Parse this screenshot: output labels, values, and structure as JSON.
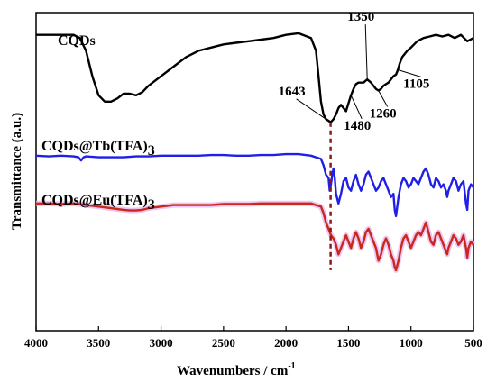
{
  "chart_data": {
    "type": "line",
    "xlabel_main": "Wavenumbers / cm",
    "xlabel_sup": "-1",
    "ylabel": "Transmittance (a.u.)",
    "xlim": [
      4000,
      500
    ],
    "x_ticks": [
      "4000",
      "3500",
      "3000",
      "2500",
      "2000",
      "1500",
      "1000",
      "500"
    ],
    "series": [
      {
        "name": "CQDs",
        "label_main": "CQDs",
        "label_sub": "",
        "color": "#000000",
        "x": [
          4000,
          3800,
          3700,
          3650,
          3600,
          3550,
          3500,
          3450,
          3400,
          3350,
          3300,
          3250,
          3200,
          3150,
          3100,
          3000,
          2900,
          2800,
          2700,
          2600,
          2500,
          2400,
          2300,
          2200,
          2100,
          2000,
          1900,
          1800,
          1760,
          1740,
          1720,
          1700,
          1680,
          1660,
          1643,
          1620,
          1600,
          1580,
          1560,
          1540,
          1520,
          1500,
          1480,
          1460,
          1440,
          1420,
          1400,
          1380,
          1350,
          1320,
          1300,
          1280,
          1260,
          1240,
          1220,
          1200,
          1180,
          1160,
          1140,
          1120,
          1105,
          1090,
          1070,
          1050,
          1030,
          1000,
          950,
          900,
          850,
          800,
          750,
          700,
          650,
          600,
          550,
          500
        ],
        "y": [
          0.93,
          0.93,
          0.93,
          0.92,
          0.88,
          0.8,
          0.74,
          0.72,
          0.72,
          0.73,
          0.745,
          0.745,
          0.74,
          0.75,
          0.77,
          0.8,
          0.83,
          0.86,
          0.88,
          0.89,
          0.9,
          0.905,
          0.91,
          0.915,
          0.92,
          0.93,
          0.935,
          0.92,
          0.88,
          0.8,
          0.72,
          0.68,
          0.665,
          0.66,
          0.655,
          0.665,
          0.68,
          0.7,
          0.71,
          0.7,
          0.69,
          0.715,
          0.74,
          0.76,
          0.775,
          0.78,
          0.78,
          0.78,
          0.79,
          0.78,
          0.77,
          0.76,
          0.755,
          0.76,
          0.77,
          0.775,
          0.78,
          0.79,
          0.8,
          0.805,
          0.82,
          0.84,
          0.86,
          0.87,
          0.88,
          0.89,
          0.91,
          0.92,
          0.925,
          0.93,
          0.925,
          0.93,
          0.92,
          0.93,
          0.91,
          0.92
        ]
      },
      {
        "name": "CQDs@Tb(TFA)3",
        "label_main": "CQDs@Tb(TFA)",
        "label_sub": "3",
        "color": "#1f1fe6",
        "x": [
          4000,
          3900,
          3800,
          3700,
          3660,
          3640,
          3620,
          3600,
          3500,
          3400,
          3300,
          3200,
          3100,
          3000,
          2900,
          2800,
          2700,
          2600,
          2500,
          2400,
          2300,
          2200,
          2100,
          2000,
          1900,
          1800,
          1760,
          1720,
          1700,
          1680,
          1660,
          1650,
          1640,
          1630,
          1620,
          1610,
          1600,
          1580,
          1560,
          1540,
          1520,
          1500,
          1480,
          1460,
          1440,
          1420,
          1400,
          1380,
          1360,
          1340,
          1320,
          1300,
          1280,
          1260,
          1240,
          1220,
          1200,
          1180,
          1160,
          1140,
          1130,
          1120,
          1100,
          1080,
          1060,
          1040,
          1020,
          1000,
          980,
          960,
          940,
          920,
          900,
          880,
          860,
          840,
          820,
          800,
          780,
          760,
          740,
          720,
          710,
          700,
          680,
          660,
          640,
          620,
          600,
          580,
          560,
          550,
          540,
          520,
          500
        ],
        "y": [
          0.55,
          0.548,
          0.55,
          0.548,
          0.545,
          0.535,
          0.545,
          0.548,
          0.545,
          0.545,
          0.545,
          0.548,
          0.548,
          0.55,
          0.55,
          0.55,
          0.55,
          0.552,
          0.552,
          0.55,
          0.55,
          0.552,
          0.552,
          0.555,
          0.555,
          0.55,
          0.545,
          0.54,
          0.52,
          0.49,
          0.48,
          0.44,
          0.46,
          0.49,
          0.51,
          0.48,
          0.43,
          0.4,
          0.43,
          0.47,
          0.48,
          0.45,
          0.44,
          0.47,
          0.49,
          0.46,
          0.44,
          0.46,
          0.49,
          0.5,
          0.48,
          0.46,
          0.44,
          0.45,
          0.47,
          0.48,
          0.46,
          0.44,
          0.42,
          0.43,
          0.38,
          0.36,
          0.42,
          0.46,
          0.48,
          0.47,
          0.45,
          0.46,
          0.48,
          0.47,
          0.46,
          0.48,
          0.5,
          0.51,
          0.49,
          0.46,
          0.45,
          0.48,
          0.47,
          0.45,
          0.46,
          0.44,
          0.42,
          0.44,
          0.46,
          0.48,
          0.47,
          0.44,
          0.46,
          0.47,
          0.4,
          0.38,
          0.44,
          0.46,
          0.45
        ]
      },
      {
        "name": "CQDs@Eu(TFA)3",
        "label_main": "CQDs@Eu(TFA)",
        "label_sub": "3",
        "color": "#c8281e",
        "x": [
          4000,
          3900,
          3800,
          3700,
          3600,
          3500,
          3400,
          3300,
          3250,
          3200,
          3150,
          3100,
          3000,
          2900,
          2800,
          2700,
          2600,
          2500,
          2400,
          2300,
          2200,
          2100,
          2000,
          1900,
          1800,
          1760,
          1720,
          1700,
          1680,
          1660,
          1640,
          1620,
          1600,
          1580,
          1560,
          1540,
          1520,
          1500,
          1480,
          1460,
          1440,
          1420,
          1400,
          1380,
          1360,
          1340,
          1320,
          1300,
          1280,
          1260,
          1240,
          1220,
          1200,
          1180,
          1160,
          1140,
          1130,
          1120,
          1100,
          1080,
          1060,
          1040,
          1020,
          1000,
          980,
          960,
          940,
          920,
          900,
          880,
          860,
          840,
          820,
          800,
          780,
          760,
          740,
          720,
          710,
          700,
          680,
          660,
          640,
          620,
          600,
          580,
          560,
          550,
          540,
          520,
          500
        ],
        "y": [
          0.4,
          0.4,
          0.398,
          0.4,
          0.395,
          0.39,
          0.385,
          0.38,
          0.378,
          0.378,
          0.38,
          0.385,
          0.39,
          0.395,
          0.395,
          0.395,
          0.395,
          0.398,
          0.398,
          0.398,
          0.4,
          0.4,
          0.4,
          0.4,
          0.4,
          0.395,
          0.39,
          0.37,
          0.34,
          0.32,
          0.3,
          0.29,
          0.27,
          0.24,
          0.26,
          0.28,
          0.3,
          0.28,
          0.26,
          0.29,
          0.31,
          0.29,
          0.26,
          0.28,
          0.31,
          0.32,
          0.3,
          0.28,
          0.26,
          0.22,
          0.24,
          0.27,
          0.29,
          0.27,
          0.24,
          0.22,
          0.2,
          0.19,
          0.22,
          0.26,
          0.29,
          0.3,
          0.28,
          0.26,
          0.28,
          0.3,
          0.31,
          0.3,
          0.32,
          0.34,
          0.31,
          0.28,
          0.27,
          0.3,
          0.31,
          0.29,
          0.27,
          0.25,
          0.24,
          0.26,
          0.28,
          0.3,
          0.29,
          0.27,
          0.28,
          0.3,
          0.26,
          0.23,
          0.26,
          0.28,
          0.27
        ]
      }
    ],
    "annotations": [
      {
        "text": "1643",
        "x": 1643,
        "y": 0.655
      },
      {
        "text": "1350",
        "x": 1350,
        "y": 0.79
      },
      {
        "text": "1480",
        "x": 1480,
        "y": 0.74
      },
      {
        "text": "1260",
        "x": 1260,
        "y": 0.755
      },
      {
        "text": "1105",
        "x": 1105,
        "y": 0.82
      }
    ],
    "reference_line": {
      "x": 1643,
      "y_from": 0.655,
      "y_to": 0.19,
      "color": "#8b1a1a"
    }
  }
}
